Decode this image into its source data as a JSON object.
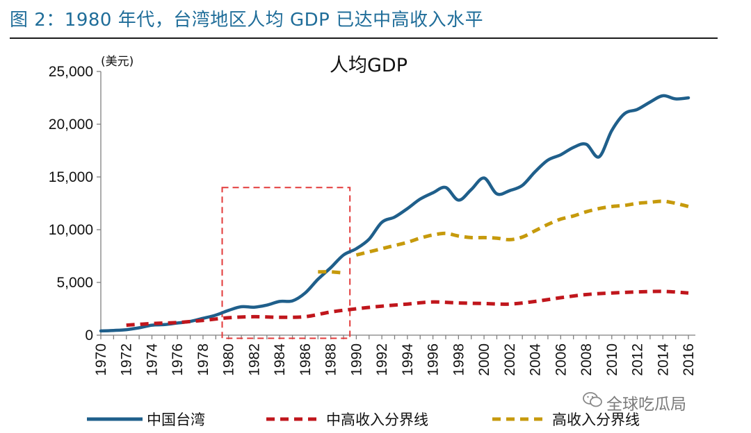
{
  "figure_title": "图 2：1980 年代，台湾地区人均 GDP 已达中高收入水平",
  "watermark": "全球吃瓜局",
  "colors": {
    "title": "#1f6d99",
    "taiwan": "#1f5f8b",
    "upper_middle": "#c0161c",
    "high": "#c69a0c",
    "highlight_box": "#e23a3a"
  },
  "chart_data": {
    "type": "line",
    "title": "人均GDP",
    "ylabel": "(美元)",
    "xlabel": "",
    "xlim": [
      1970,
      2016
    ],
    "ylim": [
      0,
      25000
    ],
    "yticks": [
      0,
      5000,
      10000,
      15000,
      20000,
      25000
    ],
    "ytick_labels": [
      "0",
      "5,000",
      "10,000",
      "15,000",
      "20,000",
      "25,000"
    ],
    "xticks": [
      1970,
      1972,
      1974,
      1976,
      1978,
      1980,
      1982,
      1984,
      1986,
      1988,
      1990,
      1992,
      1994,
      1996,
      1998,
      2000,
      2002,
      2004,
      2006,
      2008,
      2010,
      2012,
      2014,
      2016
    ],
    "xtick_labels": [
      "1970",
      "1972",
      "1974",
      "1976",
      "1978",
      "1980",
      "1982",
      "1984",
      "1986",
      "1988",
      "1990",
      "1992",
      "1994",
      "1996",
      "1998",
      "2000",
      "2002",
      "2004",
      "2006",
      "2008",
      "2010",
      "2012",
      "2014",
      "2016"
    ],
    "highlight_box": {
      "x_range": [
        1979.5,
        1989.5
      ],
      "y_range": [
        -300,
        14000
      ]
    },
    "series": [
      {
        "name": "中国台湾",
        "style": "solid",
        "x": [
          1970,
          1971,
          1972,
          1973,
          1974,
          1975,
          1976,
          1977,
          1978,
          1979,
          1980,
          1981,
          1982,
          1983,
          1984,
          1985,
          1986,
          1987,
          1988,
          1989,
          1990,
          1991,
          1992,
          1993,
          1994,
          1995,
          1996,
          1997,
          1998,
          1999,
          2000,
          2001,
          2002,
          2003,
          2004,
          2005,
          2006,
          2007,
          2008,
          2009,
          2010,
          2011,
          2012,
          2013,
          2014,
          2015,
          2016
        ],
        "values": [
          400,
          450,
          520,
          700,
          950,
          1000,
          1150,
          1300,
          1600,
          1900,
          2350,
          2700,
          2650,
          2850,
          3200,
          3250,
          4000,
          5300,
          6400,
          7600,
          8200,
          9100,
          10700,
          11200,
          12000,
          12900,
          13500,
          14000,
          12800,
          13800,
          14900,
          13400,
          13700,
          14200,
          15500,
          16600,
          17100,
          17800,
          18100,
          16900,
          19400,
          21000,
          21400,
          22100,
          22700,
          22400,
          22500
        ]
      },
      {
        "name": "中高收入分界线",
        "style": "dashed",
        "x": [
          1972,
          1974,
          1976,
          1978,
          1980,
          1982,
          1984,
          1986,
          1988,
          1990,
          1992,
          1994,
          1996,
          1998,
          2000,
          2002,
          2004,
          2006,
          2008,
          2010,
          2012,
          2014,
          2016
        ],
        "values": [
          950,
          1100,
          1200,
          1400,
          1650,
          1750,
          1700,
          1750,
          2200,
          2500,
          2750,
          2950,
          3150,
          3050,
          3000,
          2950,
          3200,
          3550,
          3850,
          4000,
          4100,
          4150,
          4000
        ]
      },
      {
        "name": "高收入分界线",
        "style": "dashed",
        "x": [
          1987,
          1988,
          1989,
          1990,
          1991,
          1992,
          1993,
          1994,
          1995,
          1996,
          1997,
          1998,
          1999,
          2000,
          2001,
          2002,
          2003,
          2004,
          2005,
          2006,
          2007,
          2008,
          2009,
          2010,
          2011,
          2012,
          2013,
          2014,
          2015,
          2016
        ],
        "values": [
          6000,
          6000,
          5900,
          7600,
          7900,
          8200,
          8500,
          8800,
          9200,
          9500,
          9650,
          9400,
          9250,
          9250,
          9200,
          9050,
          9300,
          9900,
          10500,
          11000,
          11300,
          11700,
          12000,
          12200,
          12300,
          12500,
          12600,
          12700,
          12500,
          12200
        ]
      }
    ],
    "legend": [
      "中国台湾",
      "中高收入分界线",
      "高收入分界线"
    ],
    "legend_position": "bottom",
    "grid": false
  }
}
